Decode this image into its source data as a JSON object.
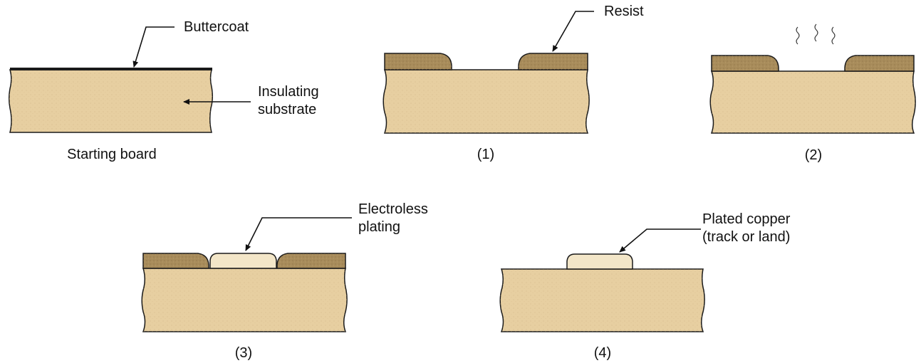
{
  "colors": {
    "substrate": "#e7cfa1",
    "resist": "#a88c5b",
    "resist_edge": "#8a7048",
    "plating": "#f3e6c8",
    "outline": "#1a1a1a"
  },
  "panels": {
    "start": {
      "caption": "Starting board",
      "label_buttercoat": "Buttercoat",
      "label_substrate": [
        "Insulating",
        "substrate"
      ]
    },
    "step1": {
      "caption": "(1)",
      "label_resist": "Resist"
    },
    "step2": {
      "caption": "(2)"
    },
    "step3": {
      "caption": "(3)",
      "label_plating": [
        "Electroless",
        "plating"
      ]
    },
    "step4": {
      "caption": "(4)",
      "label_copper": [
        "Plated copper",
        "(track or land)"
      ]
    }
  }
}
